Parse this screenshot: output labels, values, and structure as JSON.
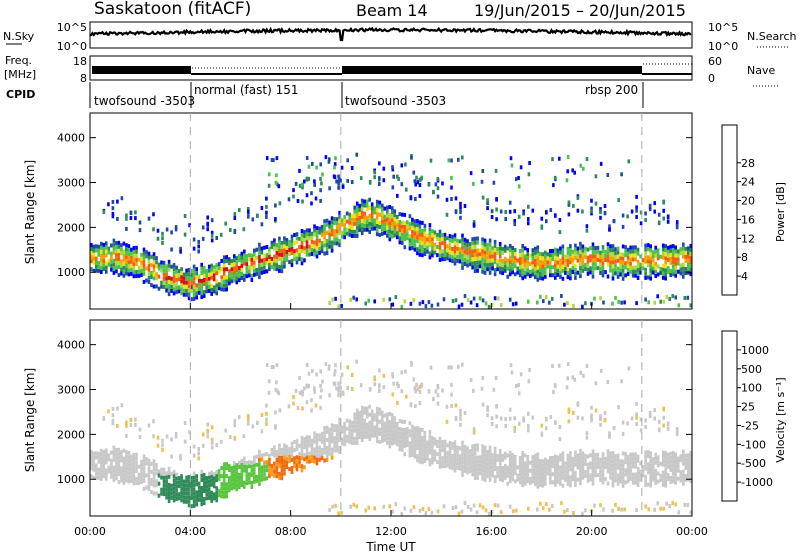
{
  "header": {
    "station": "Saskatoon (fitACF)",
    "beam": "Beam 14",
    "date_range": "19/Jun/2015 – 20/Jun/2015"
  },
  "nsky_panel": {
    "left_label": "N.Sky",
    "left_ticks": [
      "10^5",
      "10^0"
    ],
    "right_label": "N.Search",
    "right_ticks": [
      "10^5",
      "10^0"
    ]
  },
  "freq_panel": {
    "left_label_1": "Freq.",
    "left_label_2": "[MHz]",
    "left_ticks": [
      "18",
      "8"
    ],
    "right_label": "Nave",
    "right_ticks": [
      "60",
      "0"
    ]
  },
  "cpid_panel": {
    "label": "CPID",
    "segments": [
      {
        "label": "twofsound -3503",
        "start_h": 0
      },
      {
        "label": "normal (fast) 151",
        "start_h": 4
      },
      {
        "label": "twofsound -3503",
        "start_h": 10
      },
      {
        "label": "rbsp 200",
        "start_h": 22
      }
    ]
  },
  "chart_data": [
    {
      "type": "heatmap",
      "name": "Power",
      "x": "time UT (hours from 00:00)",
      "xlim": [
        0,
        24
      ],
      "ylabel": "Slant Range [km]",
      "ylim": [
        180,
        4550
      ],
      "yticks": [
        "1000",
        "2000",
        "3000",
        "4000"
      ],
      "colorbar_title": "Power [dB]",
      "colorbar_ticks": [
        "4",
        "8",
        "12",
        "16",
        "20",
        "24",
        "28"
      ],
      "colors": [
        "#0000ff",
        "#1e49a6",
        "#2e8b57",
        "#4cc24c",
        "#b0d83c",
        "#f0e020",
        "#f7a000",
        "#ef6010",
        "#d81010"
      ],
      "band_center_km": [
        [
          0,
          1300
        ],
        [
          1,
          1350
        ],
        [
          2,
          1200
        ],
        [
          3,
          900
        ],
        [
          4,
          750
        ],
        [
          5,
          900
        ],
        [
          6,
          1150
        ],
        [
          7,
          1300
        ],
        [
          8,
          1500
        ],
        [
          9,
          1700
        ],
        [
          10,
          2000
        ],
        [
          11,
          2300
        ],
        [
          12,
          2100
        ],
        [
          13,
          1800
        ],
        [
          14,
          1600
        ],
        [
          15,
          1450
        ],
        [
          16,
          1350
        ],
        [
          17,
          1250
        ],
        [
          18,
          1200
        ],
        [
          19,
          1250
        ],
        [
          20,
          1300
        ],
        [
          21,
          1250
        ],
        [
          22,
          1250
        ],
        [
          23,
          1250
        ],
        [
          24,
          1300
        ]
      ]
    },
    {
      "type": "heatmap",
      "name": "Velocity",
      "x": "time UT (hours from 00:00)",
      "xlim": [
        0,
        24
      ],
      "xlabel": "Time UT",
      "xticks": [
        "00:00",
        "04:00",
        "08:00",
        "12:00",
        "16:00",
        "20:00",
        "00:00"
      ],
      "ylabel": "Slant Range [km]",
      "ylim": [
        180,
        4550
      ],
      "yticks": [
        "1000",
        "2000",
        "3000",
        "4000"
      ],
      "colorbar_title": "Velocity [m s⁻¹]",
      "colorbar_ticks": [
        "1000",
        "500",
        "100",
        "25",
        "-25",
        "-100",
        "-500",
        "-1000"
      ],
      "colors": [
        "#1e3ea0",
        "#4a7ac0",
        "#2e8b57",
        "#5ac640",
        "#c8c8c8",
        "#f0c050",
        "#f79a20",
        "#ef6a10",
        "#d81010"
      ]
    }
  ]
}
